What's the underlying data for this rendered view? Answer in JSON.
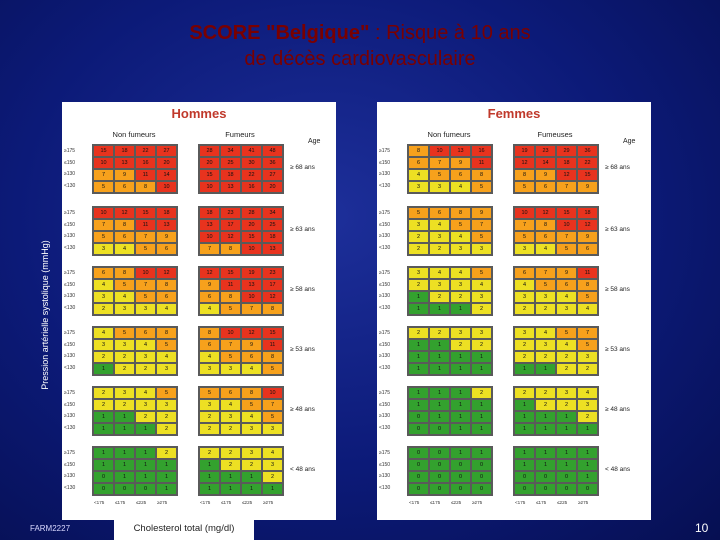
{
  "title": {
    "line1_bold": "SCORE \"Belgique\"",
    "line1_rest": " : Risque à 10 ans",
    "line2": "de décès cardiovasculaire"
  },
  "y_axis_label": "Pression artérielle systolique (mmHg)",
  "x_axis_label": "Cholesterol total (mg/dl)",
  "footer": "FARM2227",
  "page_number": "10",
  "colors": {
    "green": "#33a12e",
    "yellow": "#ede023",
    "orange": "#f7a11c",
    "red": "#e8331e"
  },
  "bp_levels": [
    "≥175",
    "≤150",
    "≥130",
    "<130"
  ],
  "chol_levels": [
    "<175",
    "≤175",
    "≤225",
    "≥275"
  ],
  "age_header": "Age",
  "panels": [
    {
      "id": "hommes",
      "title": "Hommes",
      "nonsmoker_label": "Non fumeurs",
      "smoker_label": "Fumeurs",
      "ages": [
        "≥ 68 ans",
        "≥ 63 ans",
        "≥ 58 ans",
        "≥ 53 ans",
        "≥ 48 ans",
        "< 48 ans"
      ],
      "nonsmoker": [
        [
          [
            15,
            18,
            22,
            27
          ],
          [
            10,
            13,
            16,
            20
          ],
          [
            7,
            9,
            11,
            14
          ],
          [
            5,
            6,
            8,
            10
          ]
        ],
        [
          [
            10,
            12,
            15,
            18
          ],
          [
            7,
            8,
            11,
            13
          ],
          [
            5,
            6,
            7,
            9
          ],
          [
            3,
            4,
            5,
            6
          ]
        ],
        [
          [
            6,
            8,
            10,
            12
          ],
          [
            4,
            5,
            7,
            8
          ],
          [
            3,
            4,
            5,
            6
          ],
          [
            2,
            3,
            3,
            4
          ]
        ],
        [
          [
            4,
            5,
            6,
            8
          ],
          [
            3,
            3,
            4,
            5
          ],
          [
            2,
            2,
            3,
            4
          ],
          [
            1,
            2,
            2,
            3
          ]
        ],
        [
          [
            2,
            3,
            4,
            5
          ],
          [
            2,
            2,
            3,
            3
          ],
          [
            1,
            1,
            2,
            2
          ],
          [
            1,
            1,
            1,
            2
          ]
        ],
        [
          [
            1,
            1,
            1,
            2
          ],
          [
            1,
            1,
            1,
            1
          ],
          [
            0,
            1,
            1,
            1
          ],
          [
            0,
            0,
            0,
            1
          ]
        ]
      ],
      "smoker": [
        [
          [
            28,
            34,
            41,
            48
          ],
          [
            20,
            25,
            30,
            36
          ],
          [
            15,
            18,
            22,
            27
          ],
          [
            10,
            13,
            16,
            20
          ]
        ],
        [
          [
            18,
            23,
            28,
            34
          ],
          [
            13,
            17,
            20,
            25
          ],
          [
            10,
            12,
            15,
            18
          ],
          [
            7,
            8,
            10,
            13
          ]
        ],
        [
          [
            12,
            15,
            19,
            23
          ],
          [
            9,
            11,
            13,
            17
          ],
          [
            6,
            8,
            10,
            12
          ],
          [
            4,
            5,
            7,
            8
          ]
        ],
        [
          [
            8,
            10,
            12,
            15
          ],
          [
            6,
            7,
            9,
            11
          ],
          [
            4,
            5,
            6,
            8
          ],
          [
            3,
            3,
            4,
            5
          ]
        ],
        [
          [
            5,
            6,
            8,
            10
          ],
          [
            3,
            4,
            5,
            7
          ],
          [
            2,
            3,
            4,
            5
          ],
          [
            2,
            2,
            3,
            3
          ]
        ],
        [
          [
            2,
            2,
            3,
            4
          ],
          [
            1,
            2,
            2,
            3
          ],
          [
            1,
            1,
            1,
            2
          ],
          [
            1,
            1,
            1,
            1
          ]
        ]
      ]
    },
    {
      "id": "femmes",
      "title": "Femmes",
      "nonsmoker_label": "Non fumeurs",
      "smoker_label": "Fumeuses",
      "ages": [
        "≥ 68 ans",
        "≥ 63 ans",
        "≥ 58 ans",
        "≥ 53 ans",
        "≥ 48 ans",
        "< 48 ans"
      ],
      "nonsmoker": [
        [
          [
            8,
            10,
            13,
            16
          ],
          [
            6,
            7,
            9,
            11
          ],
          [
            4,
            5,
            6,
            8
          ],
          [
            3,
            3,
            4,
            5
          ]
        ],
        [
          [
            5,
            6,
            8,
            9
          ],
          [
            3,
            4,
            5,
            7
          ],
          [
            2,
            3,
            4,
            5
          ],
          [
            2,
            2,
            3,
            3
          ]
        ],
        [
          [
            3,
            4,
            4,
            5
          ],
          [
            2,
            3,
            3,
            4
          ],
          [
            1,
            2,
            2,
            3
          ],
          [
            1,
            1,
            1,
            2
          ]
        ],
        [
          [
            2,
            2,
            3,
            3
          ],
          [
            1,
            1,
            2,
            2
          ],
          [
            1,
            1,
            1,
            1
          ],
          [
            1,
            1,
            1,
            1
          ]
        ],
        [
          [
            1,
            1,
            1,
            2
          ],
          [
            1,
            1,
            1,
            1
          ],
          [
            0,
            1,
            1,
            1
          ],
          [
            0,
            0,
            1,
            1
          ]
        ],
        [
          [
            0,
            0,
            1,
            1
          ],
          [
            0,
            0,
            0,
            0
          ],
          [
            0,
            0,
            0,
            0
          ],
          [
            0,
            0,
            0,
            0
          ]
        ]
      ],
      "smoker": [
        [
          [
            19,
            23,
            29,
            36
          ],
          [
            12,
            14,
            18,
            22
          ],
          [
            8,
            9,
            12,
            15
          ],
          [
            5,
            6,
            7,
            9
          ]
        ],
        [
          [
            10,
            12,
            15,
            18
          ],
          [
            7,
            8,
            10,
            12
          ],
          [
            5,
            6,
            7,
            9
          ],
          [
            3,
            4,
            5,
            6
          ]
        ],
        [
          [
            6,
            7,
            9,
            11
          ],
          [
            4,
            5,
            6,
            8
          ],
          [
            3,
            3,
            4,
            5
          ],
          [
            2,
            2,
            3,
            4
          ]
        ],
        [
          [
            3,
            4,
            5,
            7
          ],
          [
            2,
            3,
            4,
            5
          ],
          [
            2,
            2,
            2,
            3
          ],
          [
            1,
            1,
            2,
            2
          ]
        ],
        [
          [
            2,
            2,
            3,
            4
          ],
          [
            1,
            2,
            2,
            3
          ],
          [
            1,
            1,
            1,
            2
          ],
          [
            1,
            1,
            1,
            1
          ]
        ],
        [
          [
            1,
            1,
            1,
            1
          ],
          [
            1,
            1,
            1,
            1
          ],
          [
            0,
            0,
            0,
            1
          ],
          [
            0,
            0,
            0,
            0
          ]
        ]
      ]
    }
  ]
}
